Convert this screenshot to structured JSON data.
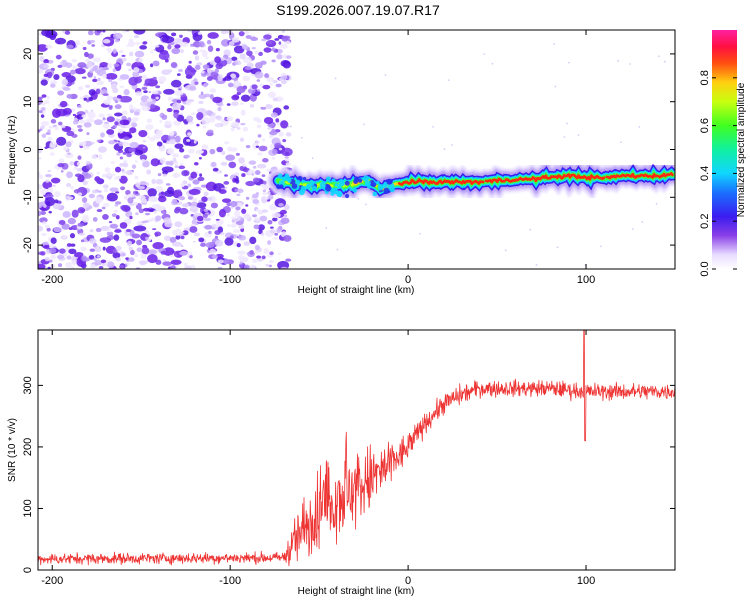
{
  "title": "S199.2026.007.19.07.R17",
  "chart_data": [
    {
      "id": "spectrogram",
      "type": "heatmap",
      "xlabel": "Height of straight line (km)",
      "ylabel": "Frequency (Hz)",
      "xlim": [
        -208,
        150
      ],
      "ylim": [
        -25,
        25
      ],
      "xticks": [
        -200,
        -100,
        0,
        100
      ],
      "yticks": [
        -20,
        -10,
        0,
        10,
        20
      ],
      "noise_region_x": [
        -208,
        -70
      ],
      "signal_start_x": -73,
      "signal_track": {
        "x": [
          -73,
          -60,
          -50,
          -40,
          -30,
          -25,
          -20,
          -15,
          -10,
          0,
          10,
          20,
          30,
          40,
          50,
          60,
          70,
          80,
          90,
          100,
          110,
          120,
          130,
          140,
          150
        ],
        "freq": [
          -6.5,
          -7.5,
          -7.5,
          -7.5,
          -7.2,
          -6.5,
          -7.0,
          -8.5,
          -7.5,
          -6.8,
          -6.8,
          -6.8,
          -6.8,
          -6.8,
          -6.5,
          -6.3,
          -6.2,
          -5.8,
          -5.5,
          -5.8,
          -6.0,
          -5.5,
          -5.5,
          -5.5,
          -5.2
        ]
      },
      "colorbar": {
        "label": "Normalized spectral amplitude",
        "ticks": [
          0.0,
          0.2,
          0.4,
          0.6,
          0.8
        ],
        "tick_labels": [
          "0.0",
          "0.2",
          "0.4",
          "0.6",
          "0.8"
        ],
        "range": [
          0,
          1
        ]
      }
    },
    {
      "id": "snr",
      "type": "line",
      "xlabel": "Height of straight line (km)",
      "ylabel": "SNR (10 * v/v)",
      "xlim": [
        -208,
        150
      ],
      "ylim": [
        0,
        390
      ],
      "xticks": [
        -200,
        -100,
        0,
        100
      ],
      "yticks": [
        0,
        100,
        200,
        300
      ],
      "color": "#ee3333",
      "envelope": {
        "x": [
          -208,
          -70,
          -60,
          -50,
          -40,
          -30,
          -20,
          -10,
          0,
          10,
          20,
          30,
          40,
          60,
          80,
          100,
          120,
          150
        ],
        "mean": [
          18,
          20,
          60,
          100,
          120,
          130,
          150,
          170,
          200,
          240,
          270,
          285,
          295,
          295,
          295,
          290,
          290,
          290
        ],
        "spread": [
          8,
          8,
          50,
          60,
          60,
          60,
          50,
          35,
          20,
          15,
          15,
          15,
          12,
          12,
          12,
          12,
          12,
          12
        ]
      },
      "spike": {
        "x": 99,
        "y_max": 390,
        "y_min": 210
      }
    }
  ]
}
